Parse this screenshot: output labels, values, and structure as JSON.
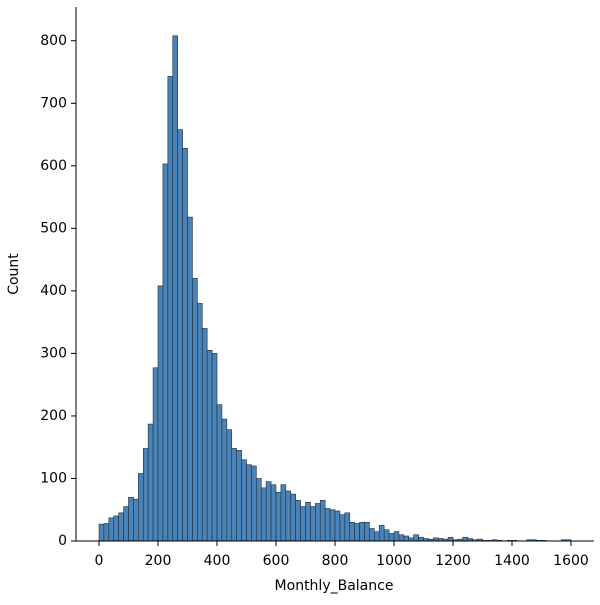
{
  "chart_data": {
    "type": "histogram",
    "xlabel": "Monthly_Balance",
    "ylabel": "Count",
    "color": "#4a83b8",
    "bins": [
      0,
      16.67,
      33.33,
      50,
      66.67,
      83.33,
      100,
      116.67,
      133.33,
      150,
      166.67,
      183.33,
      200,
      216.67,
      233.33,
      250,
      266.67,
      283.33,
      300,
      316.67,
      333.33,
      350,
      366.67,
      383.33,
      400,
      416.67,
      433.33,
      450,
      466.67,
      483.33,
      500,
      516.67,
      533.33,
      550,
      566.67,
      583.33,
      600,
      616.67,
      633.33,
      650,
      666.67,
      683.33,
      700,
      716.67,
      733.33,
      750,
      766.67,
      783.33,
      800,
      816.67,
      833.33,
      850,
      866.67,
      883.33,
      900,
      916.67,
      933.33,
      950,
      966.67,
      983.33,
      1000,
      1016.67,
      1033.33,
      1050,
      1066.67,
      1083.33,
      1100,
      1116.67,
      1133.33,
      1150,
      1166.67,
      1183.33,
      1200,
      1216.67,
      1233.33,
      1250,
      1266.67,
      1283.33,
      1300,
      1316.67,
      1333.33,
      1350,
      1366.67,
      1383.33,
      1400,
      1416.67,
      1433.33,
      1450,
      1466.67,
      1483.33,
      1500,
      1516.67,
      1533.33,
      1550,
      1566.67,
      1583.33,
      1600
    ],
    "values": [
      27,
      28,
      37,
      40,
      45,
      55,
      70,
      67,
      108,
      148,
      187,
      277,
      408,
      603,
      743,
      808,
      658,
      628,
      518,
      420,
      380,
      340,
      305,
      300,
      218,
      195,
      178,
      148,
      145,
      130,
      122,
      120,
      100,
      85,
      95,
      90,
      78,
      90,
      80,
      75,
      65,
      55,
      62,
      55,
      60,
      65,
      52,
      50,
      48,
      42,
      45,
      30,
      28,
      30,
      30,
      20,
      15,
      25,
      18,
      12,
      15,
      10,
      8,
      5,
      10,
      6,
      4,
      3,
      5,
      4,
      3,
      6,
      2,
      3,
      6,
      4,
      2,
      3,
      1,
      1,
      2,
      1,
      0,
      1,
      1,
      0,
      0,
      2,
      2,
      1,
      1,
      0,
      0,
      0,
      2,
      2
    ],
    "xlim": [
      -78,
      1678
    ],
    "ylim": [
      0,
      854
    ],
    "xticks": [
      0,
      200,
      400,
      600,
      800,
      1000,
      1200,
      1400,
      1600
    ],
    "yticks": [
      0,
      100,
      200,
      300,
      400,
      500,
      600,
      700,
      800
    ]
  }
}
